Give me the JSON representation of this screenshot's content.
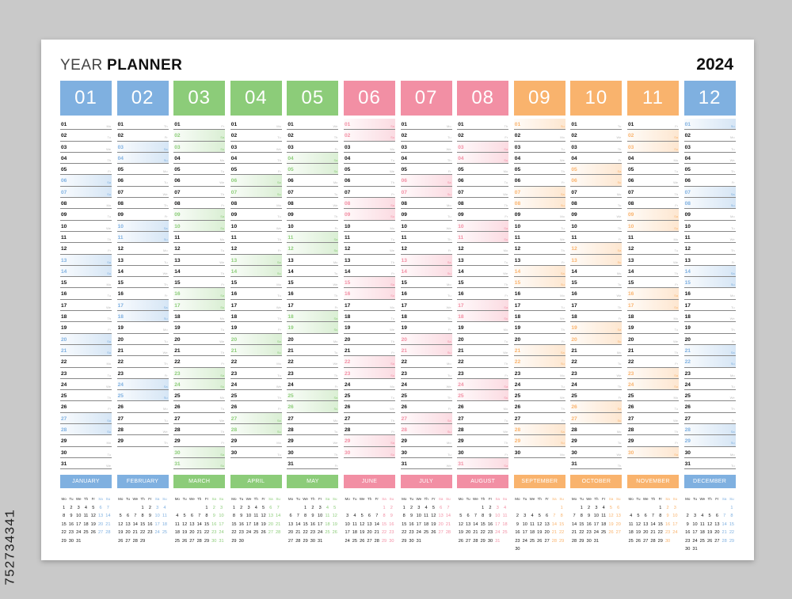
{
  "stock_id": "752734341",
  "header": {
    "title_light": "YEAR",
    "title_bold": "PLANNER",
    "year": "2024"
  },
  "weekday_labels": [
    "Mo",
    "Tu",
    "We",
    "Th",
    "Fr",
    "Sa",
    "Su"
  ],
  "colors": {
    "blue": "#7fb0e0",
    "green": "#8ccc79",
    "pink": "#f28fa4",
    "orange": "#f9b36d"
  },
  "months": [
    {
      "number": "01",
      "name": "JANUARY",
      "days": 31,
      "start_weekday": 0,
      "color": "#7fb0e0"
    },
    {
      "number": "02",
      "name": "FEBRUARY",
      "days": 29,
      "start_weekday": 3,
      "color": "#7fb0e0"
    },
    {
      "number": "03",
      "name": "MARCH",
      "days": 31,
      "start_weekday": 4,
      "color": "#8ccc79"
    },
    {
      "number": "04",
      "name": "APRIL",
      "days": 30,
      "start_weekday": 0,
      "color": "#8ccc79"
    },
    {
      "number": "05",
      "name": "MAY",
      "days": 31,
      "start_weekday": 2,
      "color": "#8ccc79"
    },
    {
      "number": "06",
      "name": "JUNE",
      "days": 30,
      "start_weekday": 5,
      "color": "#f28fa4"
    },
    {
      "number": "07",
      "name": "JULY",
      "days": 31,
      "start_weekday": 0,
      "color": "#f28fa4"
    },
    {
      "number": "08",
      "name": "AUGUST",
      "days": 31,
      "start_weekday": 3,
      "color": "#f28fa4"
    },
    {
      "number": "09",
      "name": "SEPTEMBER",
      "days": 30,
      "start_weekday": 6,
      "color": "#f9b36d"
    },
    {
      "number": "10",
      "name": "OCTOBER",
      "days": 31,
      "start_weekday": 1,
      "color": "#f9b36d"
    },
    {
      "number": "11",
      "name": "NOVEMBER",
      "days": 30,
      "start_weekday": 4,
      "color": "#f9b36d"
    },
    {
      "number": "12",
      "name": "DECEMBER",
      "days": 31,
      "start_weekday": 6,
      "color": "#7fb0e0"
    }
  ]
}
